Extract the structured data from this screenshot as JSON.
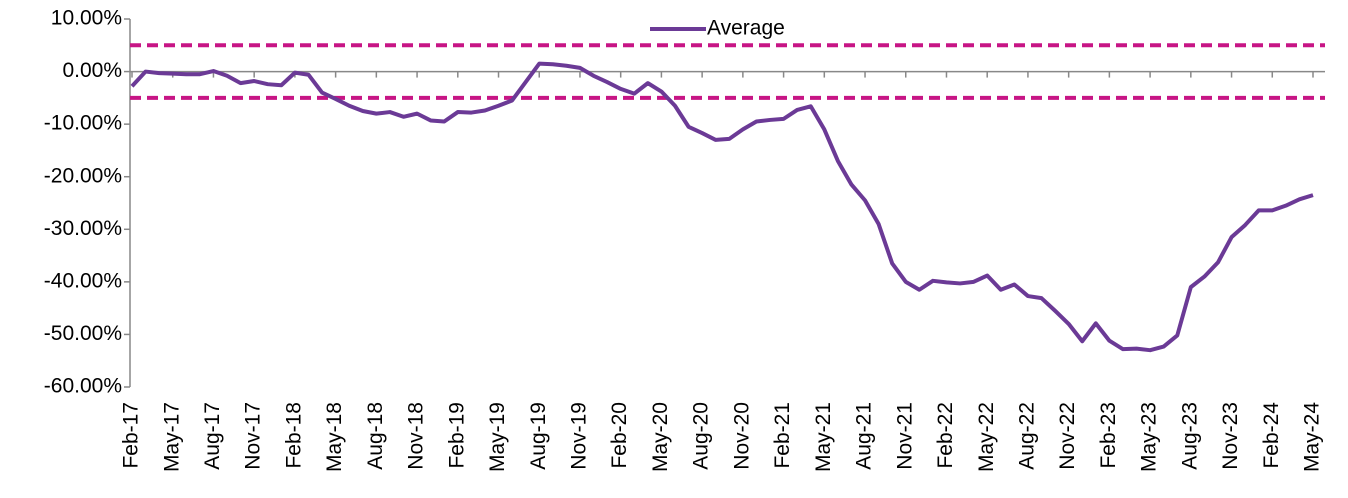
{
  "chart_data": {
    "type": "line",
    "categories": [
      "Feb-17",
      null,
      null,
      "May-17",
      null,
      null,
      "Aug-17",
      null,
      null,
      "Nov-17",
      null,
      null,
      "Feb-18",
      null,
      null,
      "May-18",
      null,
      null,
      "Aug-18",
      null,
      null,
      "Nov-18",
      null,
      null,
      "Feb-19",
      null,
      null,
      "May-19",
      null,
      null,
      "Aug-19",
      null,
      null,
      "Nov-19",
      null,
      null,
      "Feb-20",
      null,
      null,
      "May-20",
      null,
      null,
      "Aug-20",
      null,
      null,
      "Nov-20",
      null,
      null,
      "Feb-21",
      null,
      null,
      "May-21",
      null,
      null,
      "Aug-21",
      null,
      null,
      "Nov-21",
      null,
      null,
      "Feb-22",
      null,
      null,
      "May-22",
      null,
      null,
      "Aug-22",
      null,
      null,
      "Nov-22",
      null,
      null,
      "Feb-23",
      null,
      null,
      "May-23",
      null,
      null,
      "Aug-23",
      null,
      null,
      "Nov-23",
      null,
      null,
      "Feb-24",
      null,
      null,
      "May-24"
    ],
    "series": [
      {
        "name": "Average",
        "color": "#6b3a96",
        "values": [
          -2.8,
          0,
          -0.3,
          -0.4,
          -0.5,
          -0.5,
          0.1,
          -0.8,
          -2.2,
          -1.8,
          -2.4,
          -2.6,
          -0.2,
          -0.6,
          -4.0,
          -5.2,
          -6.5,
          -7.5,
          -8.0,
          -7.7,
          -8.6,
          -8.0,
          -9.3,
          -9.5,
          -7.7,
          -7.8,
          -7.4,
          -6.5,
          -5.5,
          -2.0,
          1.5,
          1.4,
          1.1,
          0.7,
          -0.8,
          -2.0,
          -3.3,
          -4.2,
          -2.2,
          -3.8,
          -6.5,
          -10.5,
          -11.7,
          -13.0,
          -12.8,
          -11.0,
          -9.5,
          -9.2,
          -9.0,
          -7.3,
          -6.6,
          -11.0,
          -17.0,
          -21.5,
          -24.5,
          -29.0,
          -36.5,
          -40.0,
          -41.5,
          -39.8,
          -40.1,
          -40.3,
          -40.0,
          -38.8,
          -41.5,
          -40.5,
          -42.7,
          -43.1,
          -45.5,
          -48.0,
          -51.3,
          -47.9,
          -51.2,
          -52.8,
          -52.7,
          -53.0,
          -52.3,
          -50.2,
          -41.0,
          -39.0,
          -36.3,
          -31.5,
          -29.2,
          -26.4,
          -26.4,
          -25.5,
          -24.3,
          -23.5
        ]
      }
    ],
    "reference_lines": [
      5,
      -5
    ],
    "reference_color": "#c71585",
    "ylim": [
      -60,
      10
    ],
    "yticks": [
      {
        "value": -60,
        "label": "-60.00%"
      },
      {
        "value": -50,
        "label": "-50.00%"
      },
      {
        "value": -40,
        "label": "-40.00%"
      },
      {
        "value": -30,
        "label": "-30.00%"
      },
      {
        "value": -20,
        "label": "-20.00%"
      },
      {
        "value": -10,
        "label": "-10.00%"
      },
      {
        "value": 0,
        "label": "0.00%"
      },
      {
        "value": 10,
        "label": "10.00%"
      }
    ],
    "legend": "top"
  }
}
